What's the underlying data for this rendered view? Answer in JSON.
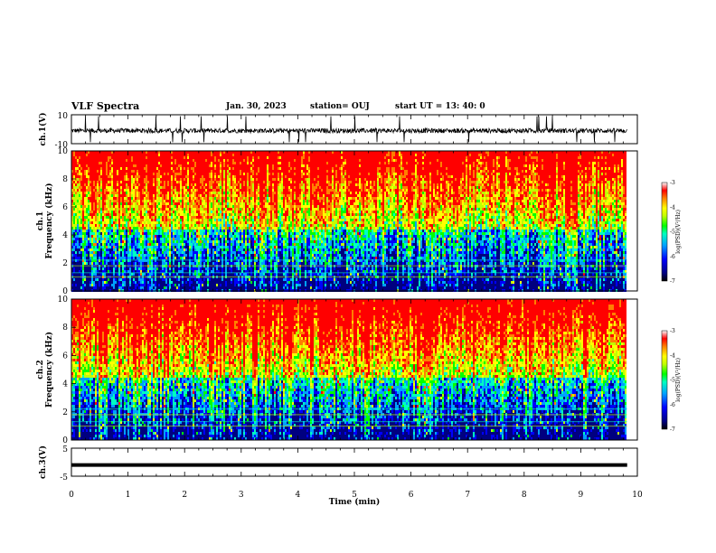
{
  "header": {
    "title": "VLF Spectra",
    "date": "Jan. 30, 2023",
    "station": "station= OUJ",
    "start": "start  UT =   13: 40: 0"
  },
  "chart_data": [
    {
      "type": "line",
      "panel": "ch1-waveform",
      "ylabel": "ch.1(V)",
      "ylim": [
        -10,
        10
      ],
      "ytick_labels": [
        "10",
        "-10"
      ],
      "series": [
        {
          "values": [
            -1.2,
            -0.8,
            -1.5,
            -0.6,
            -1.1,
            -1.4,
            -0.9,
            -1.3
          ]
        }
      ],
      "description_style": "noisy waveform between about -4 and +2 V with sparse spikes"
    },
    {
      "type": "heatmap",
      "panel": "ch1-spectrogram",
      "ylabel": "ch.1\nFrequency (kHz)",
      "ylim": [
        0,
        10
      ],
      "ytick_labels": [
        "0",
        "2",
        "4",
        "6",
        "8",
        "10"
      ],
      "xlim": [
        0,
        10
      ],
      "colorbar": {
        "label": "log(PSD)(V²/Hz)",
        "range": [
          -7,
          -3
        ],
        "tick_labels": [
          "-3",
          "-4",
          "-5",
          "-6",
          "-7"
        ]
      }
    },
    {
      "type": "heatmap",
      "panel": "ch2-spectrogram",
      "ylabel": "ch.2\nFrequency (kHz)",
      "ylim": [
        0,
        10
      ],
      "ytick_labels": [
        "0",
        "2",
        "4",
        "6",
        "8",
        "10"
      ],
      "xlim": [
        0,
        10
      ],
      "colorbar": {
        "label": "log(PSD)(V²/Hz)",
        "range": [
          -7,
          -3
        ],
        "tick_labels": [
          "-3",
          "-4",
          "-5",
          "-6",
          "-7"
        ]
      }
    },
    {
      "type": "line",
      "panel": "ch3-waveform",
      "ylabel": "ch.3(V)",
      "ylim": [
        -5,
        5
      ],
      "ytick_labels": [
        "5",
        "-5"
      ],
      "series": [
        {
          "values": [
            -1,
            -1,
            -1,
            -1,
            -1,
            -1,
            -1,
            -1
          ]
        }
      ]
    }
  ],
  "xaxis": {
    "label": "Time (min)",
    "range": [
      0,
      10
    ],
    "tick_labels": [
      "0",
      "1",
      "2",
      "3",
      "4",
      "5",
      "6",
      "7",
      "8",
      "9",
      "10"
    ]
  },
  "colors": {
    "spectrum": [
      "#000080",
      "#0000ff",
      "#00a0ff",
      "#00ffc0",
      "#00ff00",
      "#c0ff00",
      "#ffff00",
      "#ff8000",
      "#ff0000"
    ]
  }
}
